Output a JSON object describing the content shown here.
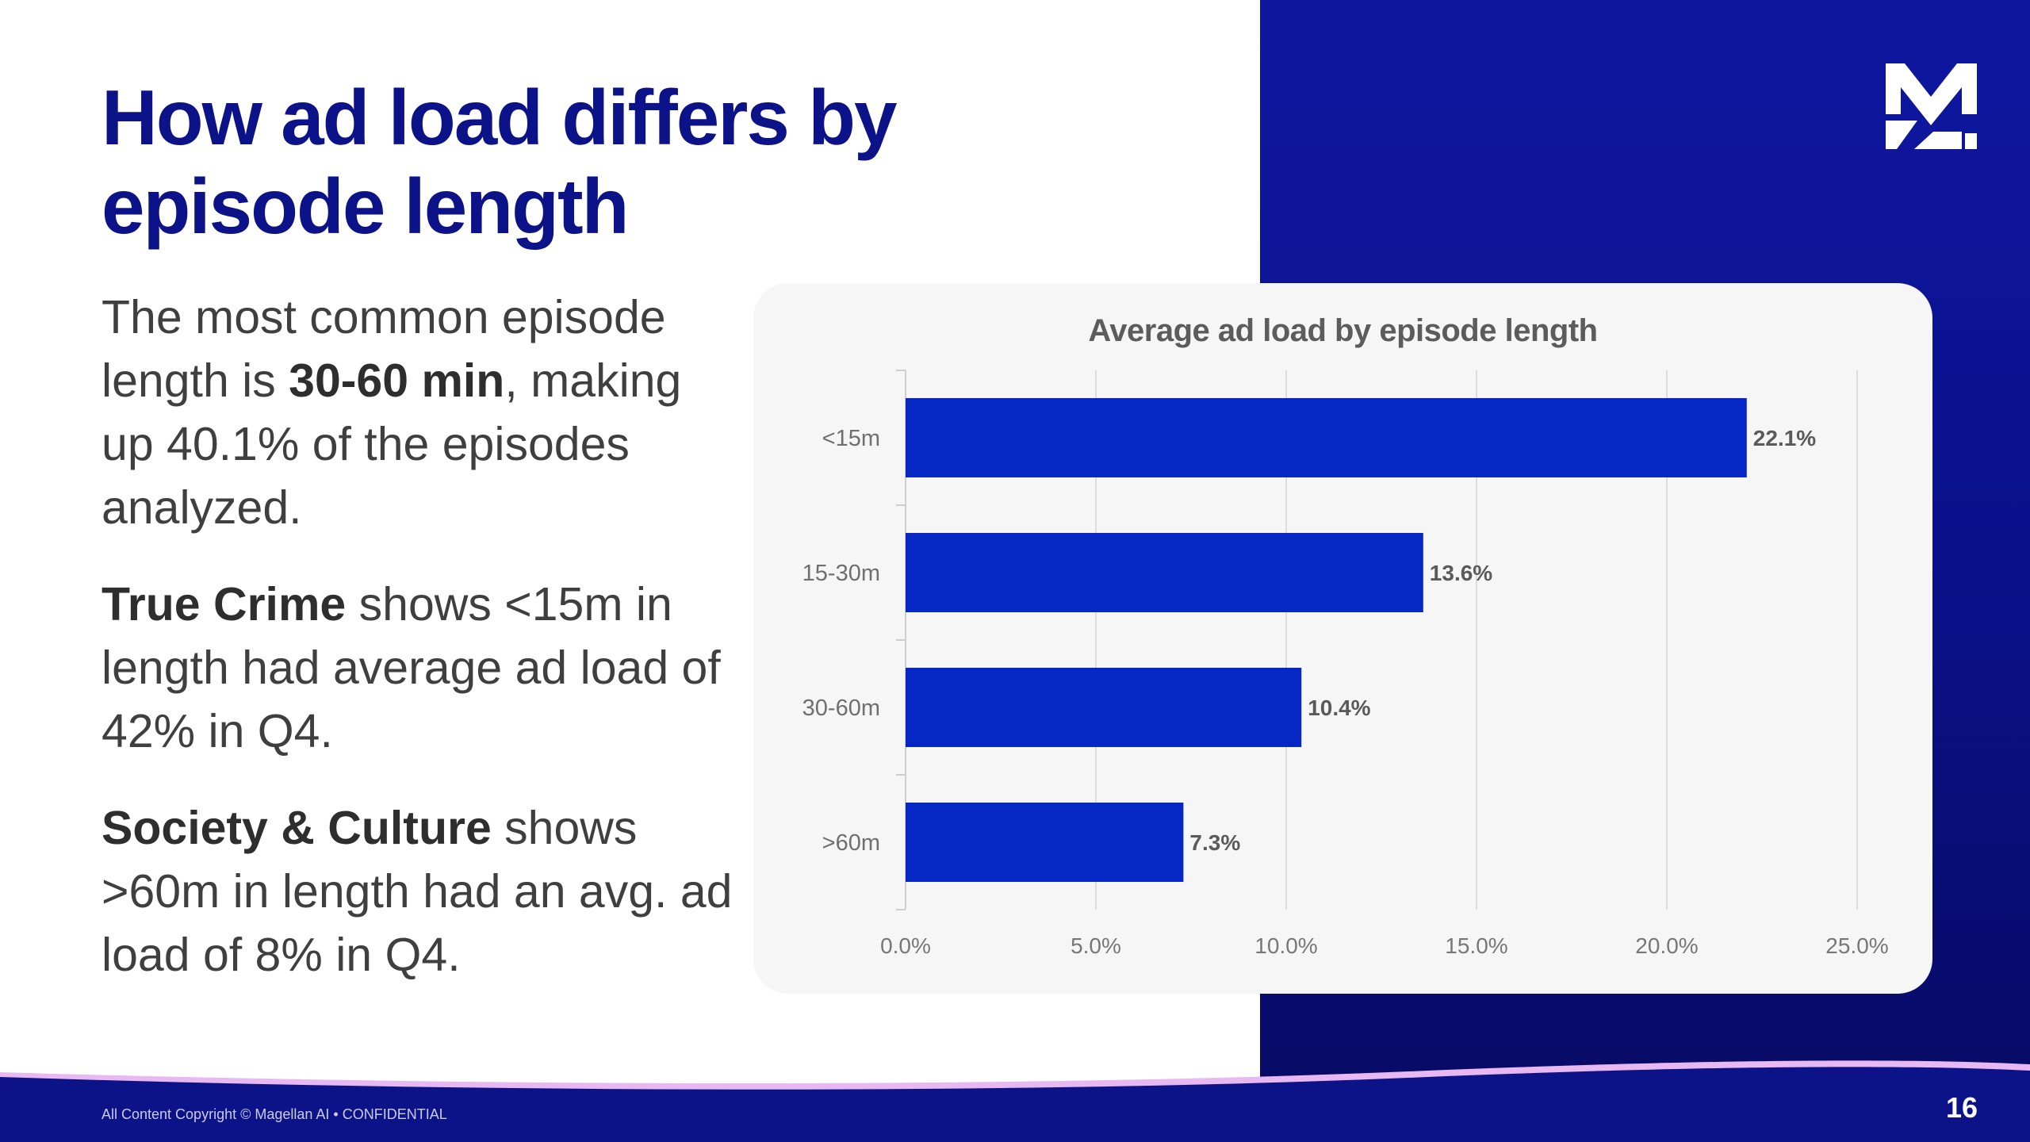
{
  "slide": {
    "title": "How ad load differs by episode length",
    "page_number": "16",
    "copyright": "All Content Copyright © Magellan AI • CONFIDENTIAL",
    "logo": "magellan-m-logo",
    "colors": {
      "title": "#0c1287",
      "panel": "#0a1087",
      "bar": "#0527c4",
      "footer_wave": "#e7b8f2"
    }
  },
  "paragraphs": {
    "p1": {
      "pre": "The most common episode length is ",
      "bold": "30-60 min",
      "post": ", making up 40.1% of the episodes analyzed."
    },
    "p2": {
      "bold": "True Crime",
      "post": " shows <15m in length had average ad load of 42% in Q4."
    },
    "p3": {
      "bold": "Society & Culture",
      "post": " shows >60m in length had an avg. ad load of 8% in Q4."
    }
  },
  "chart_data": {
    "type": "bar",
    "orientation": "horizontal",
    "title": "Average ad load by episode length",
    "categories": [
      "<15m",
      "15-30m",
      "30-60m",
      ">60m"
    ],
    "values": [
      22.1,
      13.6,
      10.4,
      7.3
    ],
    "data_labels": [
      "22.1%",
      "13.6%",
      "10.4%",
      "7.3%"
    ],
    "xlim": [
      0,
      25
    ],
    "x_ticks": [
      "0.0%",
      "5.0%",
      "10.0%",
      "15.0%",
      "20.0%",
      "25.0%"
    ],
    "grid": true,
    "legend": "none",
    "bar_color": "#0527c4"
  }
}
